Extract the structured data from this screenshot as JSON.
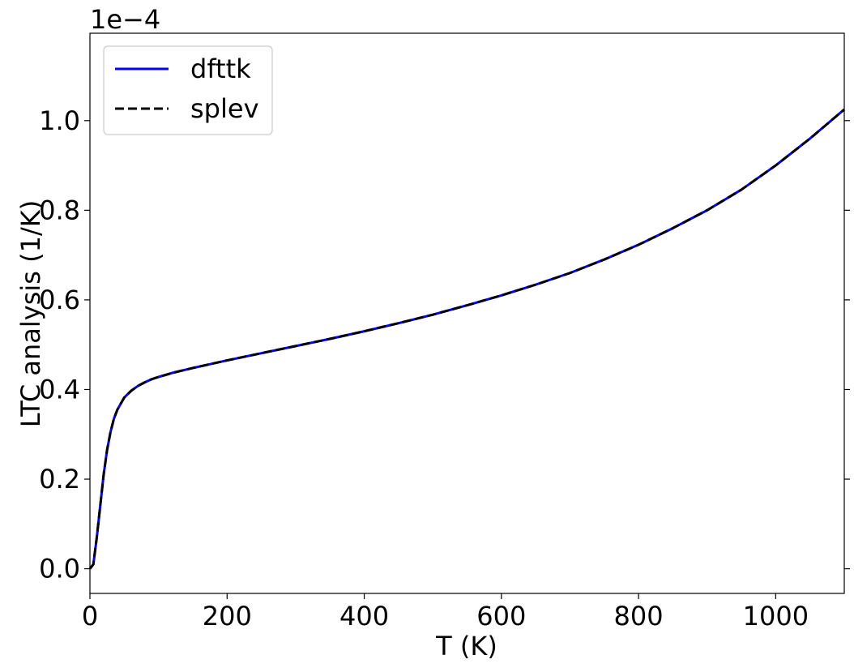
{
  "chart_data": {
    "type": "line",
    "xlabel": "T (K)",
    "ylabel": "LTC analysis (1/K)",
    "y_offset_text": "1e−4",
    "xlim": [
      0,
      1100
    ],
    "ylim": [
      -0.055,
      1.195
    ],
    "y_scale_factor": 0.0001,
    "grid": false,
    "legend_position": "top-left",
    "x_ticks": [
      0,
      200,
      400,
      600,
      800,
      1000
    ],
    "x_tick_labels": [
      "0",
      "200",
      "400",
      "600",
      "800",
      "1000"
    ],
    "y_ticks": [
      0.0,
      0.2,
      0.4,
      0.6,
      0.8,
      1.0
    ],
    "y_tick_labels": [
      "0.0",
      "0.2",
      "0.4",
      "0.6",
      "0.8",
      "1.0"
    ],
    "x": [
      0,
      5,
      10,
      15,
      20,
      25,
      30,
      35,
      40,
      50,
      60,
      70,
      80,
      90,
      100,
      120,
      150,
      200,
      250,
      300,
      350,
      400,
      450,
      500,
      550,
      600,
      650,
      700,
      750,
      800,
      850,
      900,
      950,
      1000,
      1050,
      1100
    ],
    "series": [
      {
        "name": "dfttk",
        "color": "#0000ff",
        "style": "solid",
        "values": [
          0.0,
          0.01,
          0.07,
          0.14,
          0.21,
          0.265,
          0.305,
          0.335,
          0.355,
          0.382,
          0.397,
          0.408,
          0.416,
          0.423,
          0.428,
          0.437,
          0.448,
          0.465,
          0.481,
          0.497,
          0.513,
          0.53,
          0.548,
          0.567,
          0.588,
          0.61,
          0.634,
          0.66,
          0.69,
          0.723,
          0.76,
          0.8,
          0.846,
          0.9,
          0.96,
          1.025
        ]
      },
      {
        "name": "splev",
        "color": "#000000",
        "style": "dashed",
        "values": [
          0.0,
          0.01,
          0.07,
          0.14,
          0.21,
          0.265,
          0.305,
          0.335,
          0.355,
          0.382,
          0.397,
          0.408,
          0.416,
          0.423,
          0.428,
          0.437,
          0.448,
          0.465,
          0.481,
          0.497,
          0.513,
          0.53,
          0.548,
          0.567,
          0.588,
          0.61,
          0.634,
          0.66,
          0.69,
          0.723,
          0.76,
          0.8,
          0.846,
          0.9,
          0.96,
          1.025
        ]
      }
    ]
  }
}
